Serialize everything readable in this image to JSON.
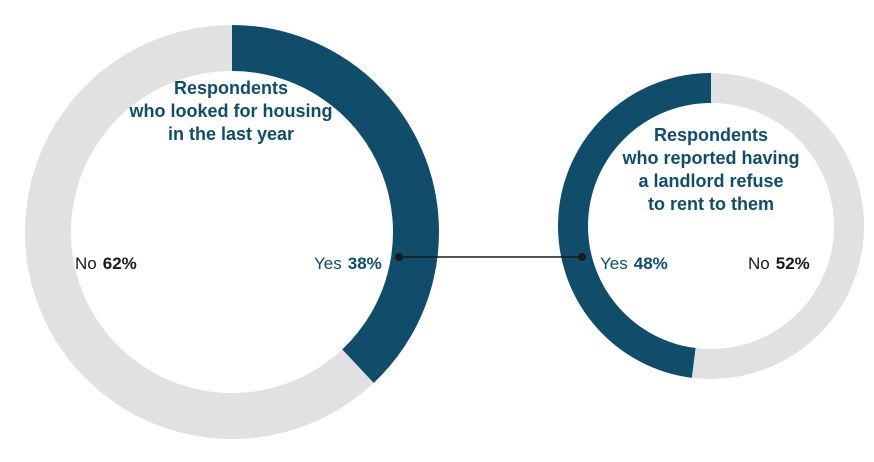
{
  "colors": {
    "yes": "#0f4d6b",
    "no": "#e0e1e2",
    "connector": "#1a1a1a"
  },
  "chart_data": [
    {
      "type": "pie",
      "title_lines": [
        "Respondents",
        "who looked for housing",
        "in the last year"
      ],
      "slices": [
        {
          "label": "Yes",
          "value": 38,
          "display": "38%"
        },
        {
          "label": "No",
          "value": 62,
          "display": "62%"
        }
      ]
    },
    {
      "type": "pie",
      "title_lines": [
        "Respondents",
        "who reported having",
        "a landlord refuse",
        "to rent to them"
      ],
      "slices": [
        {
          "label": "Yes",
          "value": 48,
          "display": "48%"
        },
        {
          "label": "No",
          "value": 52,
          "display": "52%"
        }
      ]
    }
  ]
}
